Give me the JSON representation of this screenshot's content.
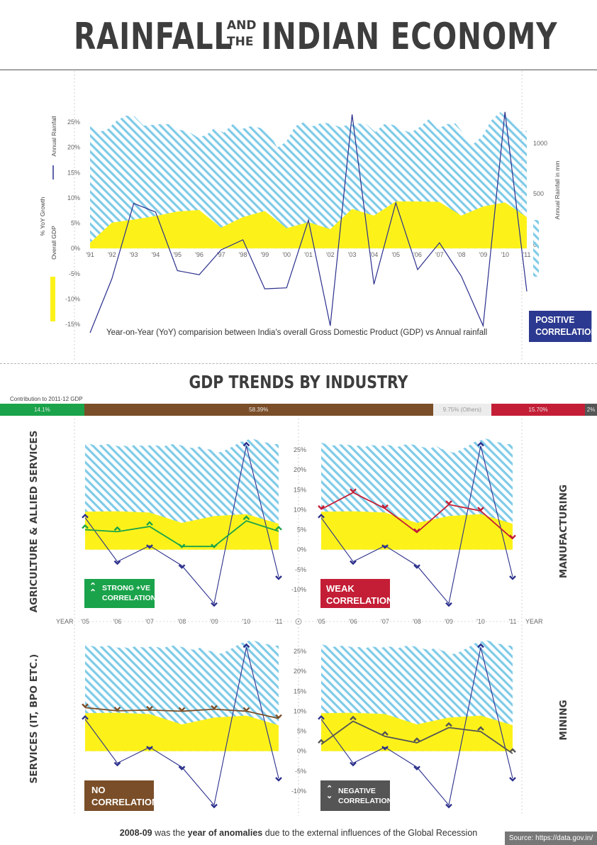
{
  "header": {
    "title_left": "RAINFALL",
    "title_and": "AND",
    "title_the": "THE",
    "title_right": "INDIAN ECONOMY"
  },
  "colors": {
    "rain_hatch": "#7fcbe8",
    "gdp_fill": "#fcf21a",
    "gdp_line": "#2b2f8c",
    "agri": "#1aa34a",
    "industry": "#7a4e28",
    "others": "#cccccc",
    "services_bar": "#c41e36",
    "mining_bar": "#555555",
    "positive_badge": "#2b3990"
  },
  "main_chart": {
    "caption": "Year-on-Year (YoY) comparision between India's overall Gross Domestic Product (GDP) vs Annual rainfall",
    "badge_line1": "POSITIVE",
    "badge_line2": "CORRELATION",
    "left_axis_label_top": "% YoY Growth",
    "left_axis_label_bottom": "Overall GDP",
    "legend_line_label": "Annual Rainfall",
    "right_axis_label": "Annual Rainfall in mm"
  },
  "section2": {
    "title": "GDP TRENDS BY INDUSTRY",
    "contribution_label": "Contribution to 2011-12 GDP",
    "contribution_segments": [
      {
        "label": "14.1%",
        "share": 14.1,
        "color": "#1aa34a"
      },
      {
        "label": "58.39%",
        "share": 58.39,
        "color": "#7a4e28"
      },
      {
        "label": "9.75% (Others)",
        "share": 9.75,
        "color": "#ececec"
      },
      {
        "label": "15.70%",
        "share": 15.7,
        "color": "#c41e36"
      },
      {
        "label": "2%",
        "share": 2.0,
        "color": "#555555"
      }
    ],
    "panel_labels": {
      "agriculture": "AGRICULTURE & ALLIED SERVICES",
      "manufacturing": "MANUFACTURING",
      "services": "SERVICES (IT, BPO ETC.)",
      "mining": "MINING"
    },
    "badges": {
      "agriculture": {
        "line1": "STRONG +VE",
        "line2": "CORRELATION"
      },
      "manufacturing": {
        "line1": "WEAK",
        "line2": "CORRELATION"
      },
      "services": {
        "line1": "NO",
        "line2": "CORRELATION"
      },
      "mining": {
        "line1": "NEGATIVE",
        "line2": "CORRELATION"
      }
    },
    "year_label": "YEAR"
  },
  "footer": {
    "note_bold1": "2008-09",
    "note_mid1": " was the ",
    "note_bold2": "year of anomalies",
    "note_end": " due to the external influences of the Global Recession",
    "source": "Source: https://data.gov.in/"
  },
  "chart_data": [
    {
      "type": "line",
      "x": [
        "'91",
        "'92",
        "'93",
        "'94",
        "'95",
        "'96",
        "'97",
        "'98",
        "'99",
        "'00",
        "'01",
        "'02",
        "'03",
        "'04",
        "'05",
        "'06",
        "'07",
        "'08",
        "'09",
        "'10",
        "'11"
      ],
      "ylim": [
        -15,
        25
      ],
      "yticks": [
        "25%",
        "20%",
        "15%",
        "10%",
        "5%",
        "0%",
        "-5%",
        "-10%",
        "-15%"
      ],
      "right_ticks": [
        "1000",
        "500",
        "0"
      ],
      "right_ylim": [
        0,
        1000
      ],
      "series": [
        {
          "name": "Overall GDP",
          "kind": "area",
          "values": [
            1.1,
            5.1,
            5.7,
            6.4,
            7.3,
            7.6,
            4.1,
            6.2,
            7.4,
            4.0,
            5.2,
            3.8,
            7.8,
            6.5,
            9.3,
            9.3,
            9.2,
            6.5,
            8.3,
            9.1,
            6.2
          ]
        },
        {
          "name": "Annual Rainfall",
          "kind": "line",
          "values": [
            -16.7,
            -6.0,
            8.9,
            7.2,
            -4.4,
            -5.2,
            -0.3,
            1.7,
            -8.0,
            -7.8,
            5.6,
            -15.3,
            26.5,
            -7.1,
            9.0,
            -4.2,
            1.1,
            -5.5,
            -15.3,
            27.0,
            -8.5
          ]
        }
      ]
    },
    {
      "type": "line",
      "name": "AGRICULTURE & ALLIED SERVICES",
      "x": [
        "'05",
        "'06",
        "'07",
        "'08",
        "'09",
        "'10",
        "'11"
      ],
      "ylim": [
        -15,
        25
      ],
      "series": [
        {
          "name": "Overall GDP",
          "kind": "area",
          "values": [
            9.5,
            9.6,
            9.3,
            6.7,
            8.4,
            8.9,
            6.5
          ]
        },
        {
          "name": "Annual Rainfall",
          "kind": "line",
          "values": [
            8.0,
            -3.0,
            1.0,
            -4.0,
            -13.5,
            26.0,
            -6.8
          ]
        },
        {
          "name": "Agriculture",
          "kind": "line",
          "values": [
            5.0,
            4.5,
            5.8,
            0.8,
            0.8,
            7.2,
            4.6
          ]
        }
      ]
    },
    {
      "type": "line",
      "name": "MANUFACTURING",
      "x": [
        "'05",
        "'06",
        "'07",
        "'08",
        "'09",
        "'10",
        "'11"
      ],
      "ylim": [
        -15,
        25
      ],
      "yticks": [
        "25%",
        "20%",
        "15%",
        "10%",
        "5%",
        "0%",
        "-5%",
        "-10%"
      ],
      "series": [
        {
          "name": "Overall GDP",
          "kind": "area",
          "values": [
            9.5,
            9.6,
            9.3,
            6.7,
            8.4,
            8.9,
            6.5
          ]
        },
        {
          "name": "Annual Rainfall",
          "kind": "line",
          "values": [
            8.0,
            -3.0,
            1.0,
            -4.0,
            -13.5,
            26.0,
            -6.8
          ]
        },
        {
          "name": "Manufacturing",
          "kind": "line",
          "values": [
            10.1,
            14.3,
            10.3,
            4.3,
            11.3,
            9.7,
            2.7
          ]
        }
      ]
    },
    {
      "type": "line",
      "name": "SERVICES (IT, BPO ETC.)",
      "x": [
        "'05",
        "'06",
        "'07",
        "'08",
        "'09",
        "'10",
        "'11"
      ],
      "ylim": [
        -15,
        25
      ],
      "series": [
        {
          "name": "Overall GDP",
          "kind": "area",
          "values": [
            9.5,
            9.6,
            9.3,
            6.7,
            8.4,
            8.9,
            6.5
          ]
        },
        {
          "name": "Annual Rainfall",
          "kind": "line",
          "values": [
            8.0,
            -3.0,
            1.0,
            -4.0,
            -13.5,
            26.0,
            -6.8
          ]
        },
        {
          "name": "Services",
          "kind": "line",
          "values": [
            10.9,
            10.1,
            10.3,
            10.0,
            10.5,
            10.0,
            8.2
          ]
        }
      ]
    },
    {
      "type": "line",
      "name": "MINING",
      "x": [
        "'05",
        "'06",
        "'07",
        "'08",
        "'09",
        "'10",
        "'11"
      ],
      "ylim": [
        -15,
        25
      ],
      "yticks": [
        "25%",
        "20%",
        "15%",
        "10%",
        "5%",
        "0%",
        "-5%",
        "-10%"
      ],
      "series": [
        {
          "name": "Overall GDP",
          "kind": "area",
          "values": [
            9.5,
            9.6,
            9.3,
            6.7,
            8.4,
            8.9,
            6.5
          ]
        },
        {
          "name": "Annual Rainfall",
          "kind": "line",
          "values": [
            8.0,
            -3.0,
            1.0,
            -4.0,
            -13.5,
            26.0,
            -6.8
          ]
        },
        {
          "name": "Mining",
          "kind": "line",
          "values": [
            1.7,
            7.5,
            3.7,
            2.1,
            5.9,
            4.9,
            -0.6
          ]
        }
      ]
    }
  ]
}
